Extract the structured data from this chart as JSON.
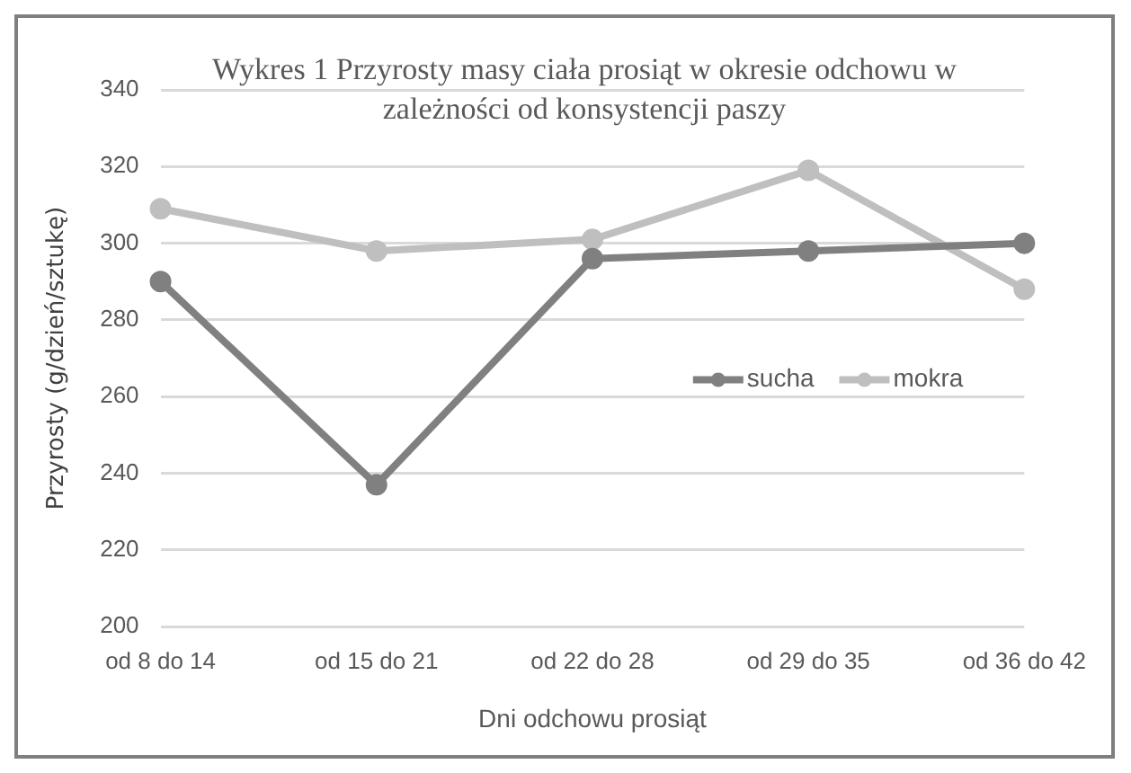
{
  "chart_data": {
    "type": "line",
    "title": "Wykres 1 Przyrosty masy ciała  prosiąt w okresie  odchowu w zależności od konsystencji paszy",
    "xlabel": "Dni odchowu prosiąt",
    "ylabel": "Przyrosty (g/dzień/sztukę)",
    "categories": [
      "od 8 do 14",
      "od 15 do 21",
      "od 22 do 28",
      "od 29 do 35",
      "od 36 do 42"
    ],
    "series": [
      {
        "name": "sucha",
        "color": "#808080",
        "values": [
          290,
          237,
          296,
          298,
          300
        ]
      },
      {
        "name": "mokra",
        "color": "#bfbfbf",
        "values": [
          309,
          298,
          301,
          319,
          288
        ]
      }
    ],
    "ylim": [
      200,
      340
    ],
    "yticks": [
      200,
      220,
      240,
      260,
      280,
      300,
      320,
      340
    ],
    "grid": "y",
    "legend": "right",
    "marker": "circle",
    "line_style": "solid"
  }
}
